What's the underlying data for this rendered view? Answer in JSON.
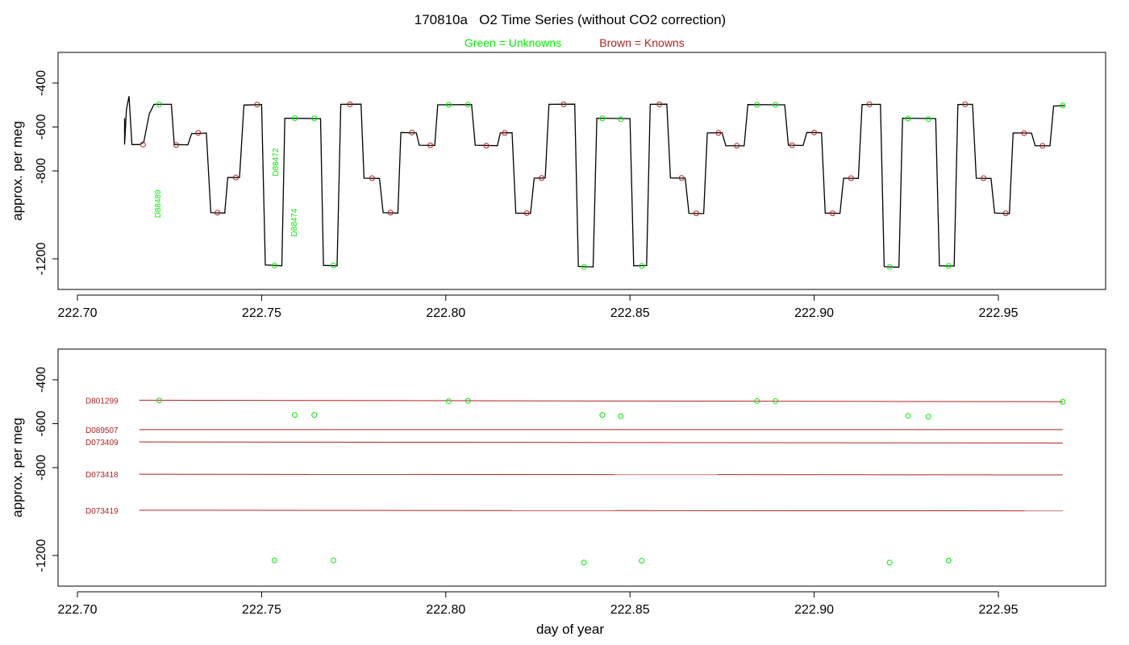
{
  "title": "170810a   O2 Time Series (without CO2 correction)",
  "legend": {
    "unknowns": "Green = Unknowns",
    "knowns": "Brown = Knowns"
  },
  "colors": {
    "unknown": "#00ee00",
    "known": "#b22222",
    "trace": "#000000"
  },
  "chart_data": [
    {
      "type": "line",
      "panel": "top",
      "ylabel": "approx. per meg",
      "xlabel": "",
      "xlim": [
        222.715,
        222.968
      ],
      "ylim": [
        -1280,
        -250
      ],
      "x_ticks": [
        "222.70",
        "222.75",
        "222.80",
        "222.85",
        "222.90",
        "222.95"
      ],
      "y_ticks": [
        "-400",
        "-600",
        "-800",
        "-1200"
      ],
      "y_tick_values": [
        -400,
        -600,
        -800,
        -1200
      ],
      "series_trace": [
        [
          222.7128,
          -560
        ],
        [
          222.7128,
          -680
        ],
        [
          222.7133,
          -520
        ],
        [
          222.714,
          -460
        ],
        [
          222.7148,
          -680
        ],
        [
          222.7168,
          -680
        ],
        [
          222.718,
          -670
        ],
        [
          222.7195,
          -540
        ],
        [
          222.7208,
          -497
        ],
        [
          222.7255,
          -497
        ],
        [
          222.7263,
          -680
        ],
        [
          222.73,
          -681
        ],
        [
          222.731,
          -630
        ],
        [
          222.735,
          -628
        ],
        [
          222.7362,
          -990
        ],
        [
          222.74,
          -992
        ],
        [
          222.7408,
          -830
        ],
        [
          222.744,
          -830
        ],
        [
          222.7452,
          -500
        ],
        [
          222.75,
          -498
        ],
        [
          222.751,
          -1228
        ],
        [
          222.7555,
          -1232
        ],
        [
          222.7563,
          -560
        ],
        [
          222.766,
          -562
        ],
        [
          222.7668,
          -1230
        ],
        [
          222.7705,
          -1232
        ],
        [
          222.7715,
          -497
        ],
        [
          222.777,
          -496
        ],
        [
          222.7778,
          -833
        ],
        [
          222.782,
          -834
        ],
        [
          222.783,
          -990
        ],
        [
          222.787,
          -992
        ],
        [
          222.7878,
          -625
        ],
        [
          222.792,
          -627
        ],
        [
          222.7928,
          -683
        ],
        [
          222.797,
          -684
        ],
        [
          222.7978,
          -499
        ],
        [
          222.807,
          -498
        ],
        [
          222.808,
          -683
        ],
        [
          222.814,
          -685
        ],
        [
          222.8148,
          -627
        ],
        [
          222.818,
          -626
        ],
        [
          222.819,
          -992
        ],
        [
          222.823,
          -993
        ],
        [
          222.824,
          -833
        ],
        [
          222.827,
          -832
        ],
        [
          222.828,
          -497
        ],
        [
          222.835,
          -496
        ],
        [
          222.836,
          -1235
        ],
        [
          222.84,
          -1237
        ],
        [
          222.841,
          -560
        ],
        [
          222.85,
          -562
        ],
        [
          222.851,
          -1232
        ],
        [
          222.8545,
          -1231
        ],
        [
          222.8555,
          -497
        ],
        [
          222.86,
          -496
        ],
        [
          222.861,
          -832
        ],
        [
          222.865,
          -833
        ],
        [
          222.866,
          -993
        ],
        [
          222.87,
          -994
        ],
        [
          222.871,
          -627
        ],
        [
          222.875,
          -626
        ],
        [
          222.876,
          -685
        ],
        [
          222.881,
          -686
        ],
        [
          222.882,
          -498
        ],
        [
          222.892,
          -499
        ],
        [
          222.893,
          -683
        ],
        [
          222.897,
          -684
        ],
        [
          222.898,
          -625
        ],
        [
          222.902,
          -626
        ],
        [
          222.903,
          -992
        ],
        [
          222.907,
          -993
        ],
        [
          222.908,
          -833
        ],
        [
          222.912,
          -834
        ],
        [
          222.913,
          -498
        ],
        [
          222.918,
          -497
        ],
        [
          222.919,
          -1236
        ],
        [
          222.923,
          -1238
        ],
        [
          222.924,
          -560
        ],
        [
          222.933,
          -562
        ],
        [
          222.934,
          -1232
        ],
        [
          222.938,
          -1233
        ],
        [
          222.939,
          -498
        ],
        [
          222.943,
          -497
        ],
        [
          222.944,
          -833
        ],
        [
          222.948,
          -834
        ],
        [
          222.949,
          -992
        ],
        [
          222.953,
          -994
        ],
        [
          222.954,
          -627
        ],
        [
          222.959,
          -628
        ],
        [
          222.96,
          -685
        ],
        [
          222.964,
          -686
        ],
        [
          222.965,
          -505
        ],
        [
          222.968,
          -502
        ]
      ],
      "known_points": [
        [
          222.7178,
          -680
        ],
        [
          222.7268,
          -682
        ],
        [
          222.7328,
          -627
        ],
        [
          222.738,
          -990
        ],
        [
          222.743,
          -830
        ],
        [
          222.7488,
          -498
        ],
        [
          222.774,
          -497
        ],
        [
          222.78,
          -833
        ],
        [
          222.785,
          -990
        ],
        [
          222.7908,
          -625
        ],
        [
          222.7958,
          -683
        ],
        [
          222.811,
          -685
        ],
        [
          222.816,
          -627
        ],
        [
          222.822,
          -992
        ],
        [
          222.826,
          -832
        ],
        [
          222.832,
          -497
        ],
        [
          222.858,
          -497
        ],
        [
          222.864,
          -832
        ],
        [
          222.868,
          -993
        ],
        [
          222.874,
          -627
        ],
        [
          222.879,
          -685
        ],
        [
          222.894,
          -683
        ],
        [
          222.9,
          -625
        ],
        [
          222.905,
          -993
        ],
        [
          222.91,
          -833
        ],
        [
          222.915,
          -497
        ],
        [
          222.941,
          -497
        ],
        [
          222.946,
          -833
        ],
        [
          222.952,
          -993
        ],
        [
          222.957,
          -628
        ],
        [
          222.962,
          -686
        ]
      ],
      "unknown_points": [
        [
          222.7222,
          -497
        ],
        [
          222.7535,
          -1230
        ],
        [
          222.759,
          -560
        ],
        [
          222.7643,
          -561
        ],
        [
          222.7695,
          -1230
        ],
        [
          222.8008,
          -499
        ],
        [
          222.806,
          -498
        ],
        [
          222.8375,
          -1237
        ],
        [
          222.8425,
          -561
        ],
        [
          222.8475,
          -564
        ],
        [
          222.8532,
          -1232
        ],
        [
          222.8845,
          -499
        ],
        [
          222.8895,
          -499
        ],
        [
          222.9205,
          -1237
        ],
        [
          222.9255,
          -562
        ],
        [
          222.931,
          -564
        ],
        [
          222.9365,
          -1232
        ],
        [
          222.9675,
          -502
        ]
      ],
      "annotations": [
        {
          "label": "D88489",
          "x": 222.7225,
          "y": -950
        },
        {
          "label": "D88472",
          "x": 222.7545,
          "y": -760
        },
        {
          "label": "D88474",
          "x": 222.7595,
          "y": -1035
        }
      ]
    },
    {
      "type": "scatter",
      "panel": "bottom",
      "ylabel": "approx. per meg",
      "xlabel": "day of year",
      "xlim": [
        222.715,
        222.968
      ],
      "ylim": [
        -1280,
        -250
      ],
      "x_ticks": [
        "222.70",
        "222.75",
        "222.80",
        "222.85",
        "222.90",
        "222.95"
      ],
      "y_ticks": [
        "-400",
        "-600",
        "-800",
        "-1200"
      ],
      "y_tick_values": [
        -400,
        -600,
        -800,
        -1200
      ],
      "known_lines": [
        {
          "label": "D801299",
          "y_start": -493,
          "y_end": -500
        },
        {
          "label": "D089507",
          "y_start": -627,
          "y_end": -627
        },
        {
          "label": "D073409",
          "y_start": -683,
          "y_end": -688
        },
        {
          "label": "D073418",
          "y_start": -830,
          "y_end": -833
        },
        {
          "label": "D073419",
          "y_start": -994,
          "y_end": -997
        }
      ],
      "line_x_range": [
        222.7168,
        222.9675
      ],
      "unknown_points": [
        [
          222.7222,
          -494
        ],
        [
          222.7535,
          -1222
        ],
        [
          222.759,
          -560
        ],
        [
          222.7643,
          -560
        ],
        [
          222.7695,
          -1222
        ],
        [
          222.8008,
          -498
        ],
        [
          222.806,
          -496
        ],
        [
          222.8375,
          -1232
        ],
        [
          222.8425,
          -560
        ],
        [
          222.8475,
          -566
        ],
        [
          222.8532,
          -1224
        ],
        [
          222.8845,
          -497
        ],
        [
          222.8895,
          -497
        ],
        [
          222.9205,
          -1232
        ],
        [
          222.9255,
          -564
        ],
        [
          222.931,
          -568
        ],
        [
          222.9365,
          -1223
        ],
        [
          222.9675,
          -500
        ]
      ]
    }
  ]
}
